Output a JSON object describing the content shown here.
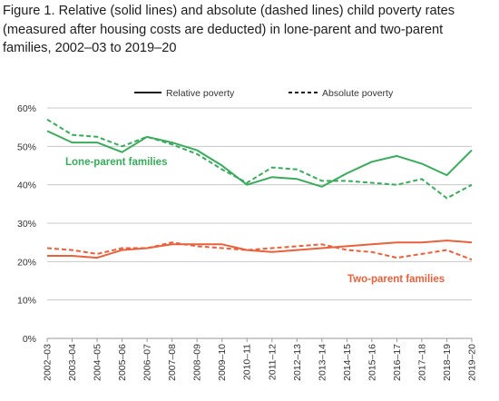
{
  "title": "Figure 1. Relative (solid lines) and absolute (dashed lines) child poverty rates (measured after housing costs are deducted) in lone-parent and two-parent families, 2002–03 to 2019–20",
  "chart_data": {
    "type": "line",
    "title": "Figure 1. Relative (solid lines) and absolute (dashed lines) child poverty rates (measured after housing costs are deducted) in lone-parent and two-parent families, 2002–03 to 2019–20",
    "categories": [
      "2002–03",
      "2003–04",
      "2004–05",
      "2005–06",
      "2006–07",
      "2007–08",
      "2008–09",
      "2009–10",
      "2010–11",
      "2011–12",
      "2012–13",
      "2013–14",
      "2014–15",
      "2015–16",
      "2016–17",
      "2017–18",
      "2018–19",
      "2019–20"
    ],
    "ylim": [
      0,
      60
    ],
    "yticks": [
      0,
      10,
      20,
      30,
      40,
      50,
      60
    ],
    "ytick_labels": [
      "0%",
      "10%",
      "20%",
      "30%",
      "40%",
      "50%",
      "60%"
    ],
    "grid": "horizontal",
    "legend": {
      "placement": "top",
      "entries": [
        {
          "label": "Relative poverty",
          "style": "solid"
        },
        {
          "label": "Absolute poverty",
          "style": "dashed"
        }
      ]
    },
    "groups": [
      {
        "label": "Lone-parent families",
        "color": "#3aaa5c"
      },
      {
        "label": "Two-parent families",
        "color": "#e8613c"
      }
    ],
    "series": [
      {
        "group": 0,
        "style": "solid",
        "color": "#3aaa5c",
        "values": [
          54,
          51,
          51,
          48.5,
          52.5,
          51,
          49,
          45,
          40,
          42,
          41.5,
          39.5,
          43,
          46,
          47.5,
          45.5,
          42.5,
          49
        ]
      },
      {
        "group": 0,
        "style": "dashed",
        "color": "#3aaa5c",
        "values": [
          57,
          53,
          52.5,
          50,
          52.5,
          50.5,
          48,
          44,
          40.5,
          44.5,
          44,
          41,
          41,
          40.5,
          40,
          41.5,
          36.5,
          40
        ]
      },
      {
        "group": 1,
        "style": "solid",
        "color": "#e8613c",
        "values": [
          21.5,
          21.5,
          21,
          23,
          23.5,
          24.5,
          24.5,
          24.5,
          23,
          22.5,
          23,
          23.5,
          24,
          24.5,
          25,
          25,
          25.5,
          25
        ]
      },
      {
        "group": 1,
        "style": "dashed",
        "color": "#e8613c",
        "values": [
          23.5,
          23,
          22,
          23.5,
          23.5,
          25,
          24,
          23.5,
          23,
          23.5,
          24,
          24.5,
          23,
          22.5,
          21,
          22,
          23,
          20.5
        ]
      }
    ]
  }
}
